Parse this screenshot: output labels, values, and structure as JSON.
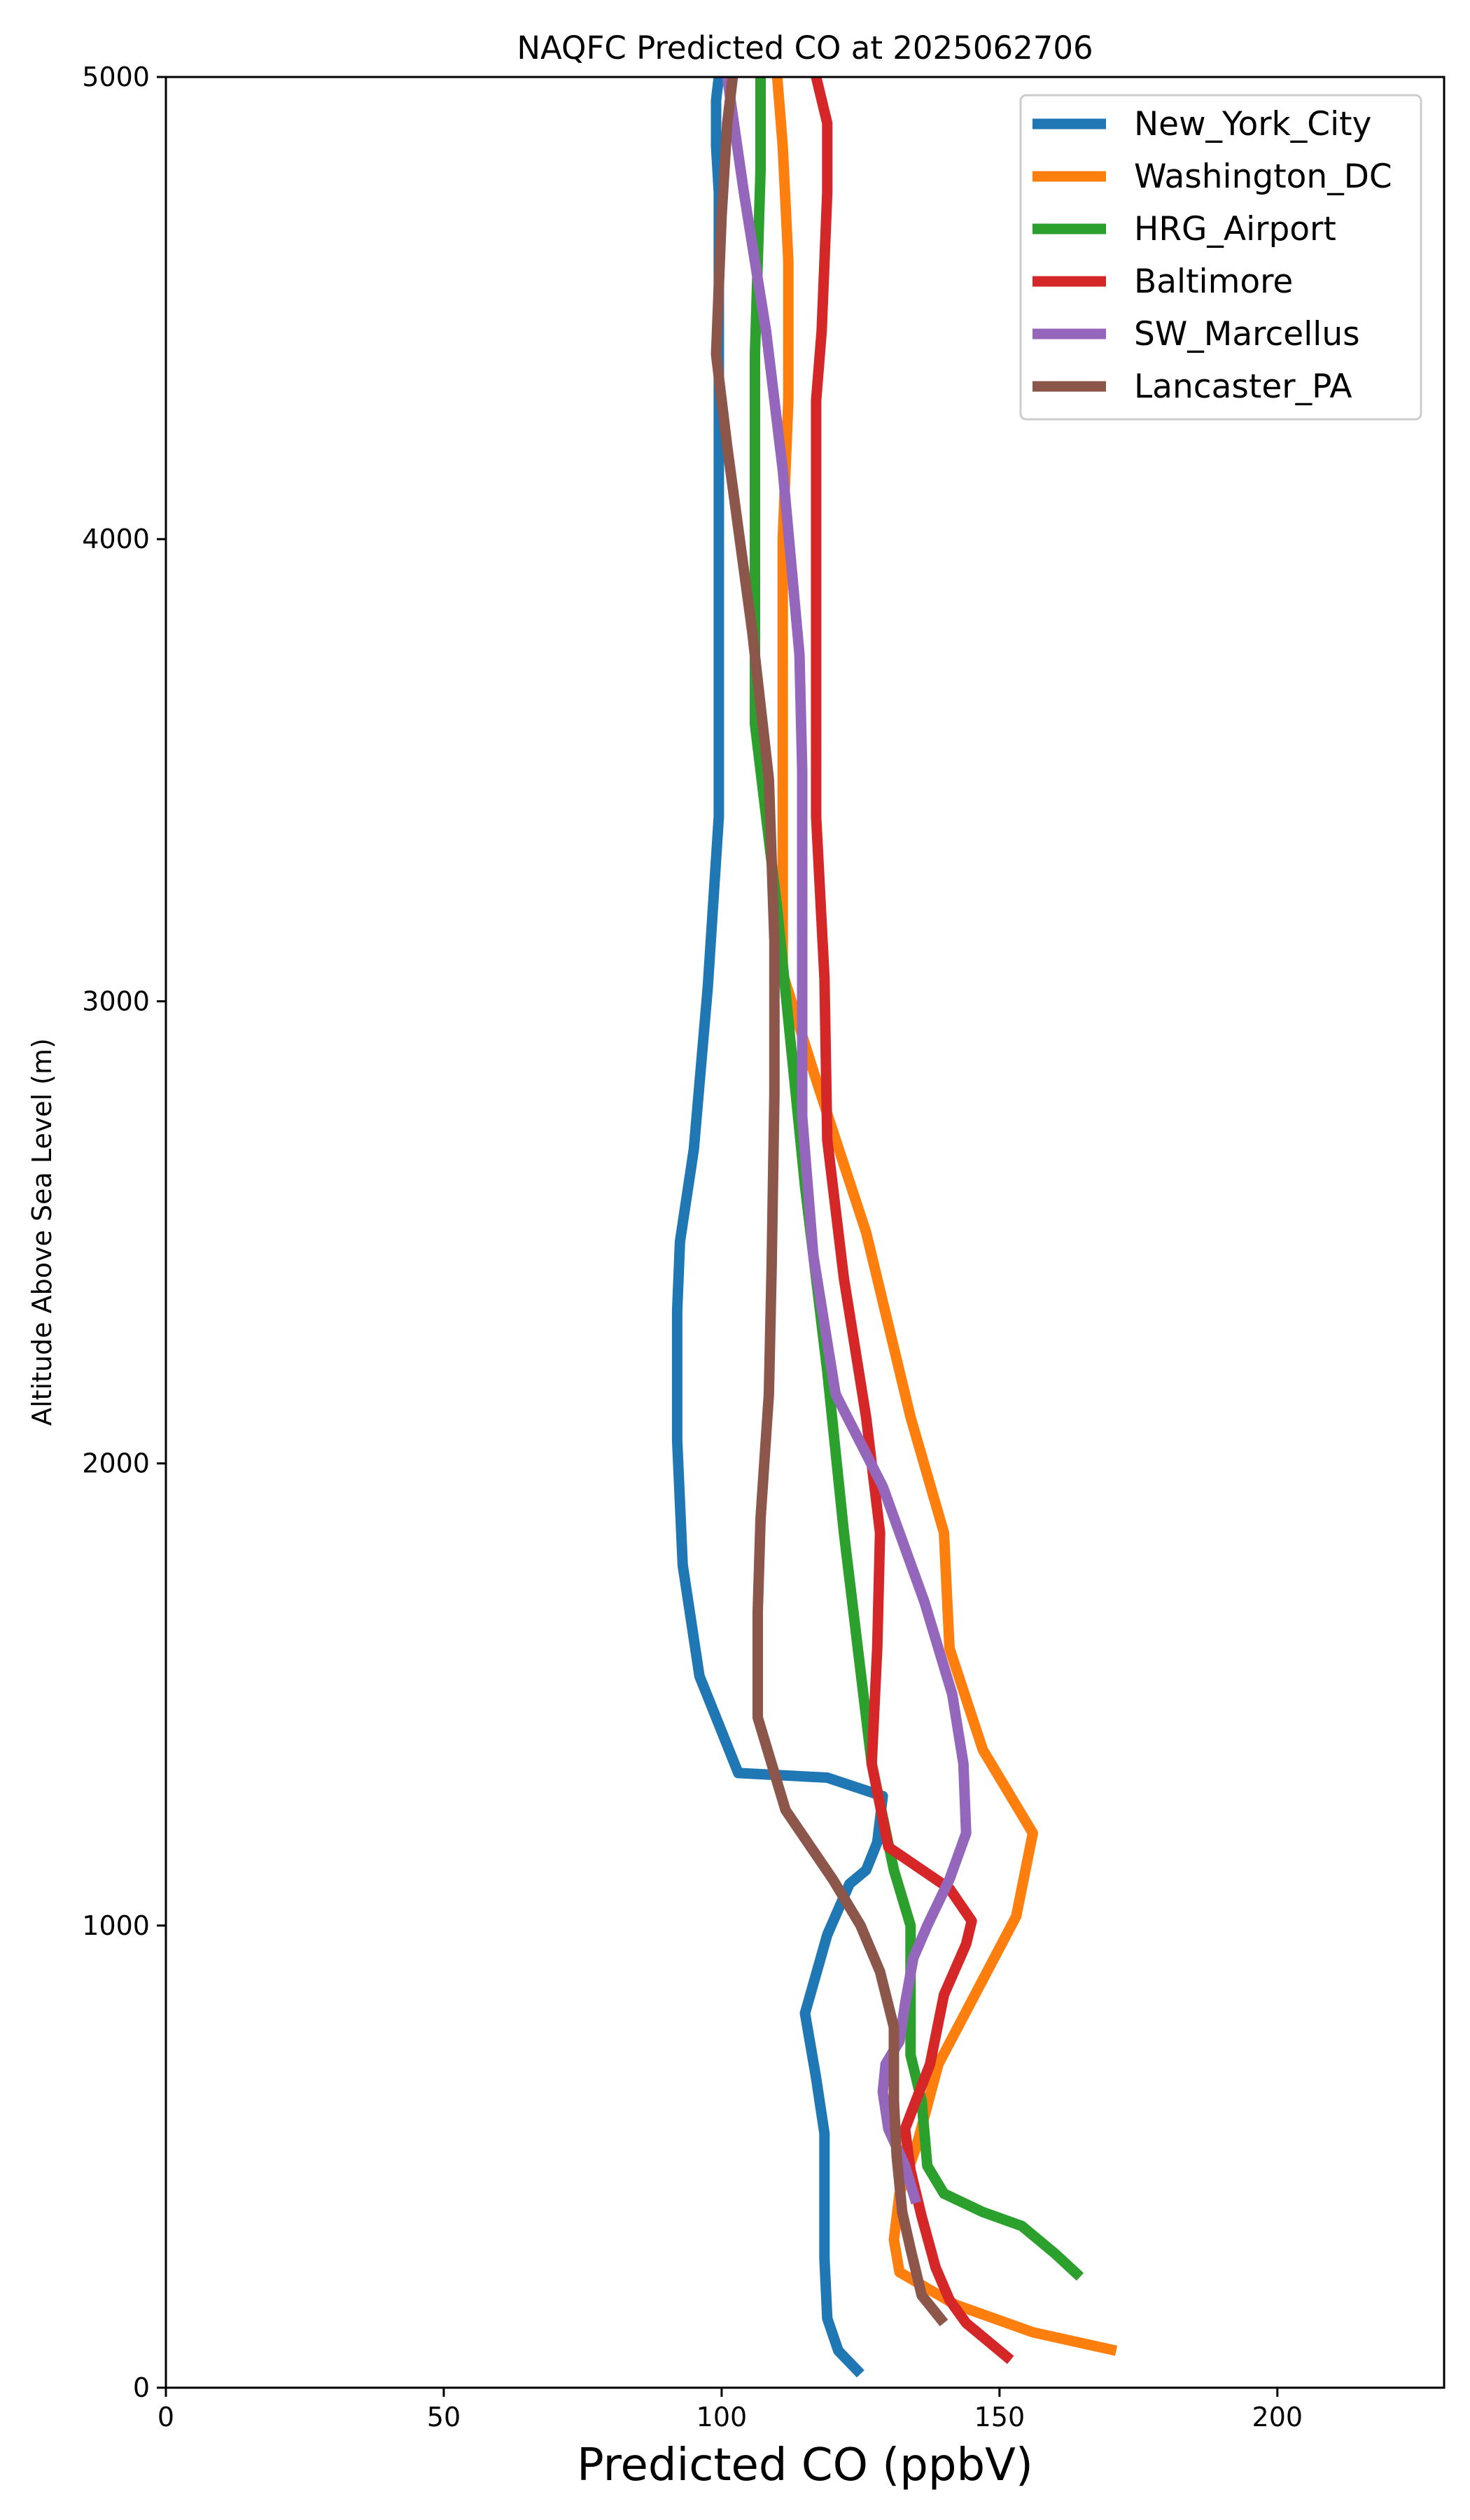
{
  "chart_data": {
    "type": "line",
    "title": "NAQFC Predicted CO at 2025062706",
    "xlabel": "Predicted CO (ppbV)",
    "ylabel": "Altitude Above Sea Level (m)",
    "xlim": [
      0,
      230
    ],
    "ylim": [
      0,
      5000
    ],
    "xticks": [
      "0",
      "50",
      "100",
      "150",
      "200"
    ],
    "yticks": [
      "0",
      "1000",
      "2000",
      "3000",
      "4000",
      "5000"
    ],
    "grid": false,
    "legend_position": "top-right",
    "series": [
      {
        "name": "New_York_City",
        "color": "#1f77b4",
        "x": [
          125,
          121,
          119,
          118.5,
          118.5,
          118.5,
          117,
          115,
          119,
          123,
          126,
          128,
          129,
          119,
          103,
          96,
          93,
          92,
          92,
          92.5,
          95,
          97.5,
          99.5,
          99.5,
          99.5,
          99.5,
          99,
          99,
          99.5
        ],
        "y": [
          30,
          80,
          150,
          280,
          450,
          550,
          670,
          810,
          980,
          1090,
          1120,
          1180,
          1280,
          1320,
          1330,
          1540,
          1780,
          2050,
          2330,
          2480,
          2680,
          3030,
          3400,
          3850,
          4300,
          4750,
          4850,
          4950,
          5000
        ]
      },
      {
        "name": "Washington_DC",
        "color": "#ff7f0e",
        "x": [
          171,
          156,
          142,
          132,
          131,
          132,
          135,
          139,
          146,
          153,
          156,
          147,
          141,
          140,
          134,
          126,
          117,
          111,
          111,
          111,
          112,
          112,
          111,
          110
        ],
        "y": [
          80,
          120,
          180,
          250,
          320,
          420,
          520,
          700,
          860,
          1020,
          1200,
          1380,
          1600,
          1850,
          2100,
          2500,
          2830,
          3060,
          3500,
          4000,
          4300,
          4600,
          4850,
          5000
        ]
      },
      {
        "name": "HRG_Airport",
        "color": "#2ca02c",
        "x": [
          164.5,
          160,
          154,
          147,
          140,
          137,
          136,
          134,
          134,
          134,
          131,
          127,
          125,
          122,
          119,
          115,
          110,
          106,
          106,
          106,
          107,
          107
        ],
        "y": [
          240,
          290,
          350,
          380,
          420,
          480,
          620,
          720,
          860,
          1000,
          1120,
          1350,
          1550,
          1850,
          2200,
          2600,
          3200,
          3600,
          4000,
          4400,
          4800,
          5000
        ]
      },
      {
        "name": "Baltimore",
        "color": "#d62728",
        "x": [
          152,
          148,
          144,
          141,
          138.5,
          136,
          134,
          133,
          137.5,
          140,
          144,
          145,
          141,
          130,
          127,
          128,
          128.5,
          126,
          122,
          119,
          118.5,
          117,
          117,
          117,
          118,
          119,
          119,
          117
        ],
        "y": [
          60,
          100,
          140,
          190,
          260,
          370,
          470,
          560,
          700,
          850,
          960,
          1010,
          1080,
          1170,
          1350,
          1600,
          1850,
          2100,
          2400,
          2700,
          3050,
          3400,
          3850,
          4300,
          4450,
          4750,
          4900,
          5000
        ]
      },
      {
        "name": "SW_Marcellus",
        "color": "#9467bd",
        "x": [
          135,
          133,
          130,
          129,
          129.5,
          132,
          133,
          134.5,
          137,
          141,
          144,
          143.5,
          141.5,
          136.5,
          129,
          120.5,
          116.5,
          114.5,
          114.5,
          114.5,
          114,
          111,
          108,
          104,
          101
        ],
        "y": [
          400,
          480,
          560,
          640,
          700,
          750,
          830,
          930,
          1000,
          1100,
          1200,
          1350,
          1500,
          1700,
          1950,
          2150,
          2450,
          2750,
          3050,
          3500,
          3750,
          4150,
          4450,
          4750,
          5000
        ]
      },
      {
        "name": "Lancaster_PA",
        "color": "#8c564b",
        "x": [
          140,
          136,
          134,
          132.5,
          131.5,
          131,
          131,
          128.5,
          125,
          120,
          111.5,
          106.5,
          106.5,
          107,
          108.5,
          109,
          109.5,
          109.5,
          108.5,
          105.5,
          101,
          99,
          100,
          101,
          102
        ],
        "y": [
          140,
          200,
          300,
          380,
          500,
          620,
          780,
          900,
          1000,
          1100,
          1250,
          1450,
          1680,
          1880,
          2150,
          2430,
          2800,
          3130,
          3480,
          3800,
          4200,
          4400,
          4700,
          4900,
          5000
        ]
      }
    ]
  }
}
